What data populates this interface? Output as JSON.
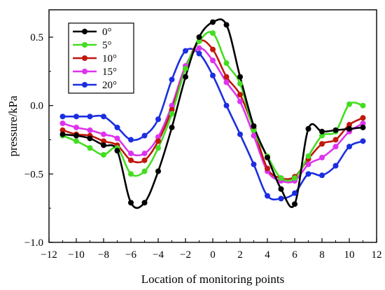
{
  "chart_data": {
    "type": "line",
    "title": "",
    "xlabel": "Location of monitoring points",
    "ylabel": "pressure/kPa",
    "xlim": [
      -12,
      12
    ],
    "ylim": [
      -1.0,
      0.7
    ],
    "xticks": [
      -12,
      -10,
      -8,
      -6,
      -4,
      -2,
      0,
      2,
      4,
      6,
      8,
      10,
      12
    ],
    "yticks": [
      -1.0,
      -0.5,
      0.0,
      0.5
    ],
    "ytick_labels": [
      "−1.0",
      "−0.5",
      "0.0",
      "0.5"
    ],
    "xtick_labels": [
      "−12",
      "−10",
      "−8",
      "−6",
      "−4",
      "−2",
      "0",
      "2",
      "4",
      "6",
      "8",
      "10",
      "12"
    ],
    "grid": false,
    "legend_position": "top-left",
    "series": [
      {
        "name": "0°",
        "color": "#000000",
        "x": [
          -11,
          -10,
          -9,
          -8,
          -7,
          -6,
          -5,
          -4,
          -3,
          -2,
          -1,
          0,
          1,
          2,
          3,
          4,
          5,
          6,
          7,
          8,
          9,
          10,
          11
        ],
        "y": [
          -0.21,
          -0.22,
          -0.24,
          -0.29,
          -0.33,
          -0.71,
          -0.71,
          -0.48,
          -0.16,
          0.21,
          0.5,
          0.61,
          0.59,
          0.21,
          -0.15,
          -0.38,
          -0.61,
          -0.72,
          -0.17,
          -0.19,
          -0.18,
          -0.17,
          -0.16
        ]
      },
      {
        "name": "5°",
        "color": "#44dd22",
        "x": [
          -11,
          -10,
          -9,
          -8,
          -7,
          -6,
          -5,
          -4,
          -3,
          -2,
          -1,
          0,
          1,
          2,
          3,
          4,
          5,
          6,
          7,
          8,
          9,
          10,
          11
        ],
        "y": [
          -0.22,
          -0.26,
          -0.31,
          -0.36,
          -0.31,
          -0.5,
          -0.48,
          -0.31,
          -0.06,
          0.27,
          0.47,
          0.53,
          0.31,
          0.16,
          -0.18,
          -0.37,
          -0.53,
          -0.53,
          -0.37,
          -0.22,
          -0.19,
          0.01,
          0.0
        ]
      },
      {
        "name": "10°",
        "color": "#c0180c",
        "x": [
          -11,
          -10,
          -9,
          -8,
          -7,
          -6,
          -5,
          -4,
          -3,
          -2,
          -1,
          0,
          1,
          2,
          3,
          4,
          5,
          6,
          7,
          8,
          9,
          10,
          11
        ],
        "y": [
          -0.18,
          -0.21,
          -0.22,
          -0.26,
          -0.29,
          -0.4,
          -0.4,
          -0.26,
          -0.03,
          0.27,
          0.47,
          0.41,
          0.21,
          0.08,
          -0.17,
          -0.46,
          -0.53,
          -0.52,
          -0.39,
          -0.28,
          -0.25,
          -0.14,
          -0.09
        ]
      },
      {
        "name": "15°",
        "color": "#dd33ee",
        "x": [
          -11,
          -10,
          -9,
          -8,
          -7,
          -6,
          -5,
          -4,
          -3,
          -2,
          -1,
          0,
          1,
          2,
          3,
          4,
          5,
          6,
          7,
          8,
          9,
          10,
          11
        ],
        "y": [
          -0.13,
          -0.16,
          -0.18,
          -0.21,
          -0.24,
          -0.35,
          -0.35,
          -0.23,
          0.0,
          0.29,
          0.42,
          0.33,
          0.17,
          0.03,
          -0.22,
          -0.48,
          -0.55,
          -0.55,
          -0.43,
          -0.38,
          -0.3,
          -0.19,
          -0.13
        ]
      },
      {
        "name": "20°",
        "color": "#1c2ee0",
        "x": [
          -11,
          -10,
          -9,
          -8,
          -7,
          -6,
          -5,
          -4,
          -3,
          -2,
          -1,
          0,
          1,
          2,
          3,
          4,
          5,
          6,
          7,
          8,
          9,
          10,
          11
        ],
        "y": [
          -0.08,
          -0.08,
          -0.08,
          -0.08,
          -0.16,
          -0.25,
          -0.22,
          -0.1,
          0.19,
          0.4,
          0.38,
          0.22,
          0.0,
          -0.21,
          -0.43,
          -0.66,
          -0.68,
          -0.64,
          -0.5,
          -0.51,
          -0.44,
          -0.3,
          -0.26
        ]
      }
    ]
  }
}
